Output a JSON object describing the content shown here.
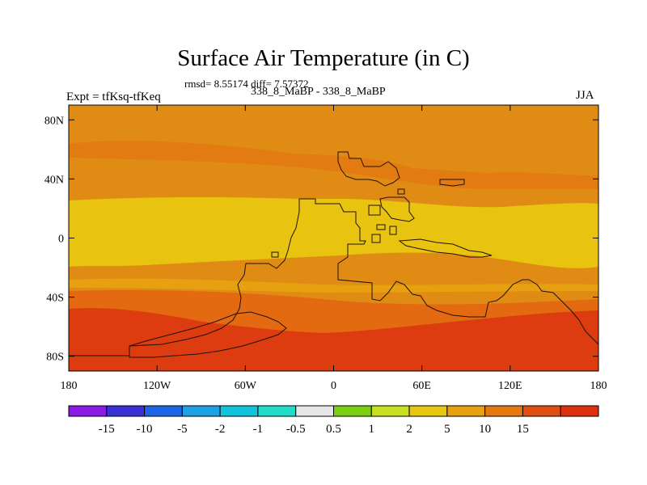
{
  "title": "Surface Air Temperature (in C)",
  "stats": "rmsd= 8.55174 diff= 7.57372",
  "experiment": "Expt = tfKsq-tfKeq",
  "runs": "338_8_MaBP - 338_8_MaBP",
  "season": "JJA",
  "map": {
    "lon_range": [
      -180,
      180
    ],
    "lat_range": [
      -90,
      90
    ],
    "lat_ticks": [
      {
        "v": 80,
        "label": "80N"
      },
      {
        "v": 40,
        "label": "40N"
      },
      {
        "v": 0,
        "label": "0"
      },
      {
        "v": -40,
        "label": "40S"
      },
      {
        "v": -80,
        "label": "80S"
      }
    ],
    "lon_ticks": [
      {
        "v": -180,
        "label": "180"
      },
      {
        "v": -120,
        "label": "120W"
      },
      {
        "v": -60,
        "label": "60W"
      },
      {
        "v": 0,
        "label": "0"
      },
      {
        "v": 60,
        "label": "60E"
      },
      {
        "v": 120,
        "label": "120E"
      },
      {
        "v": 180,
        "label": "180"
      }
    ]
  },
  "colorbar": {
    "colors": [
      "#8a1ae6",
      "#3a30d8",
      "#1e64e6",
      "#1ea0e6",
      "#10c4e0",
      "#20dcc8",
      "#e6e6e6",
      "#7ad010",
      "#c8e020",
      "#e6c810",
      "#e6a010",
      "#e67810",
      "#e24e10",
      "#dc3010"
    ],
    "labels": [
      "-15",
      "-10",
      "-5",
      "-2",
      "-1",
      "-0.5",
      "0.5",
      "1",
      "2",
      "5",
      "10",
      "15"
    ]
  }
}
